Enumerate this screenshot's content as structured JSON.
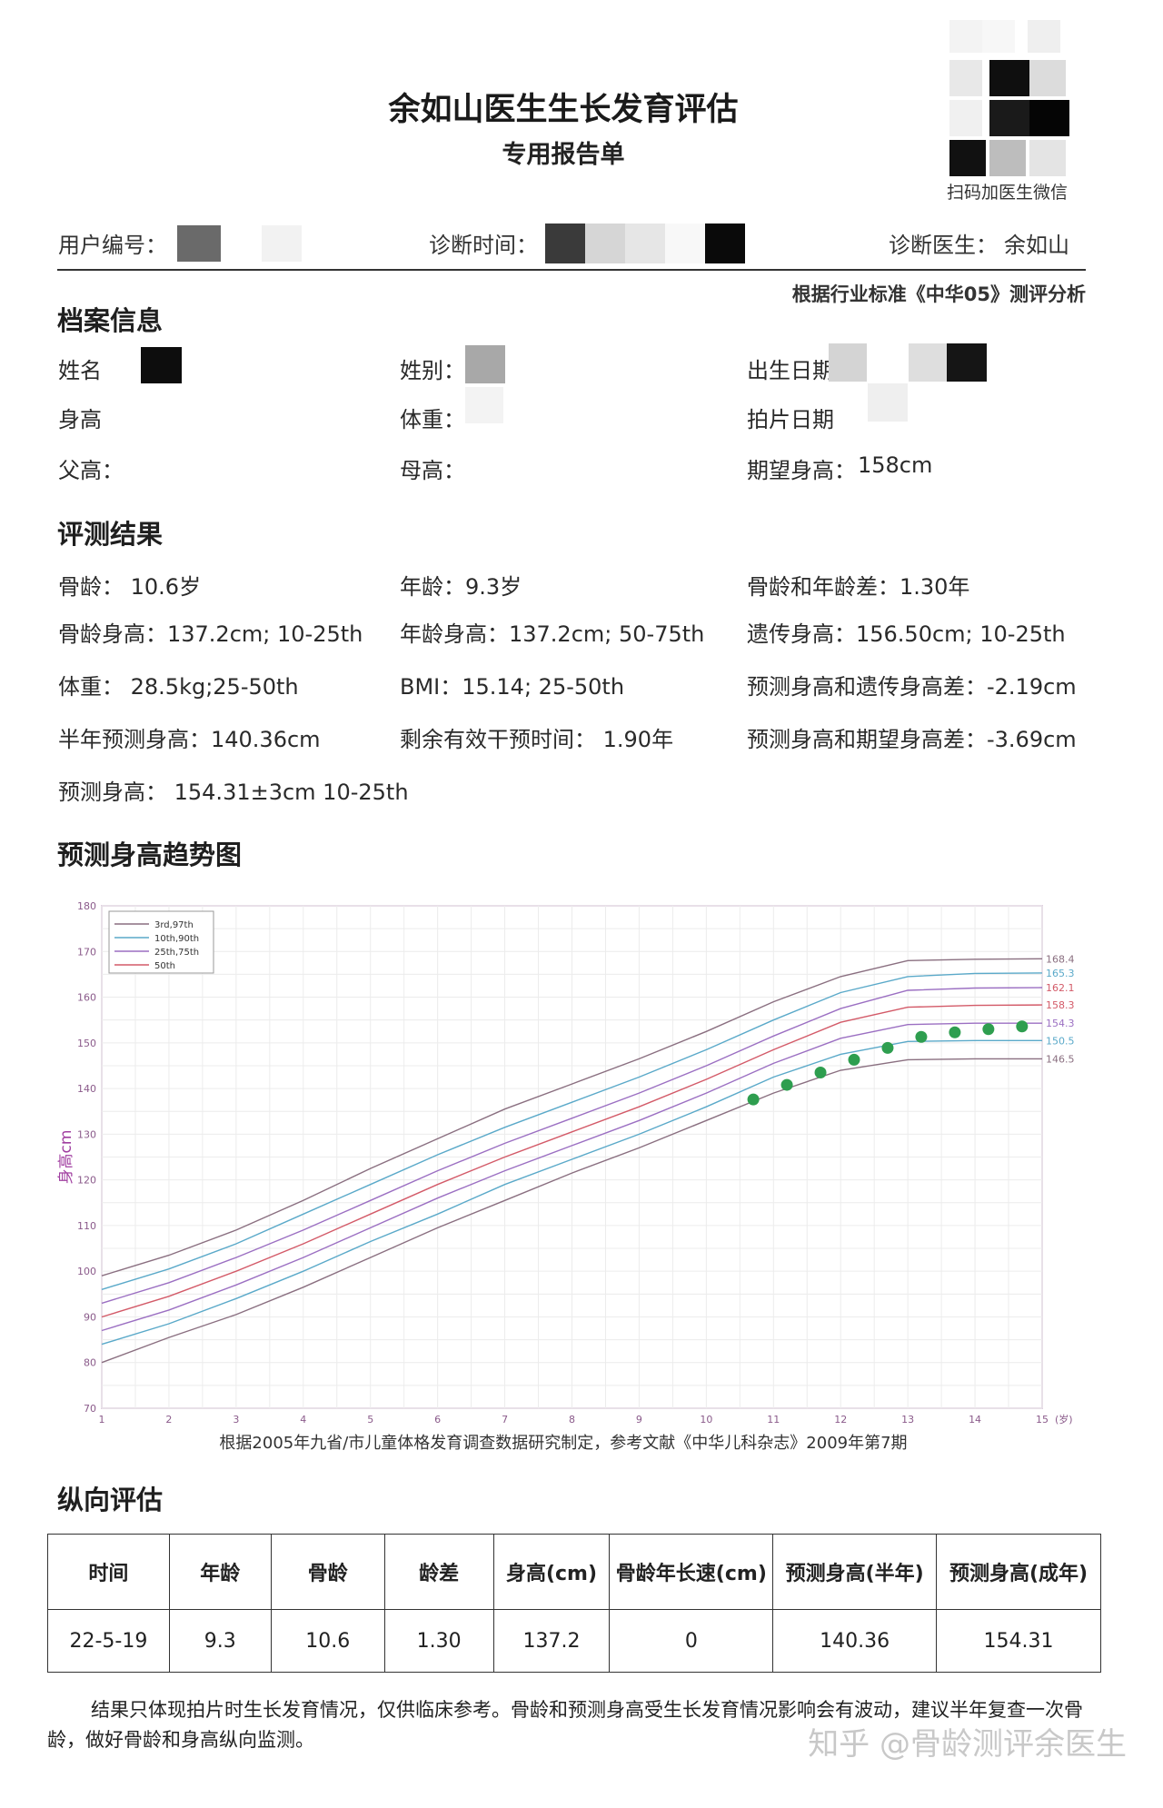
{
  "report": {
    "title": "余如山医生生长发育评估",
    "subtitle": "专用报告单",
    "qr_caption": "扫码加医生微信",
    "user_id_label": "用户编号：",
    "diag_time_label": "诊断时间：",
    "doctor_label": "诊断医生：",
    "doctor_name": "余如山",
    "standard": "根据行业标准《中华05》测评分析"
  },
  "profile": {
    "heading": "档案信息",
    "name_label": "姓名",
    "gender_label": "姓别：",
    "birth_label": "出生日期",
    "height_label": "身高",
    "weight_label": "体重：",
    "xray_label": "拍片日期",
    "father_label": "父高：",
    "mother_label": "母高：",
    "expected_label": "期望身高：",
    "expected_value": "158cm"
  },
  "results": {
    "heading": "评测结果",
    "rows": [
      [
        "骨龄：  10.6岁",
        "年龄：9.3岁",
        "骨龄和年龄差：1.30年"
      ],
      [
        "骨龄身高：137.2cm; 10-25th",
        "年龄身高：137.2cm; 50-75th",
        "遗传身高：156.50cm;    10-25th"
      ],
      [
        "体重：  28.5kg;25-50th",
        "BMI：15.14; 25-50th",
        "预测身高和遗传身高差：-2.19cm"
      ],
      [
        "半年预测身高：140.36cm",
        "剩余有效干预时间：  1.90年",
        "预测身高和期望身高差：-3.69cm"
      ],
      [
        "预测身高：  154.31±3cm     10-25th",
        "",
        ""
      ]
    ]
  },
  "trend": {
    "heading": "预测身高趋势图",
    "caption": "根据2005年九省/市儿童体格发育调查数据研究制定，参考文献《中华儿科杂志》2009年第7期"
  },
  "chart_data": {
    "type": "line",
    "ylabel": "身高cm",
    "x_unit": "(岁)",
    "xlim": [
      1,
      15
    ],
    "ylim": [
      70,
      180
    ],
    "x_ticks": [
      1,
      2,
      3,
      4,
      5,
      6,
      7,
      8,
      9,
      10,
      11,
      12,
      13,
      14,
      15
    ],
    "y_ticks": [
      70,
      80,
      90,
      100,
      110,
      120,
      130,
      140,
      150,
      160,
      170,
      180
    ],
    "grid": true,
    "legend_position": "top-left",
    "x": [
      1,
      2,
      3,
      4,
      5,
      6,
      7,
      8,
      9,
      10,
      11,
      12,
      13,
      14,
      15
    ],
    "series": [
      {
        "name": "3rd,97th",
        "color": "#8a6f80",
        "values": [
          99.0,
          103.5,
          109.0,
          115.5,
          122.5,
          129.0,
          135.5,
          141.0,
          146.5,
          152.5,
          159.0,
          164.5,
          168.0,
          168.3,
          168.4
        ]
      },
      {
        "name": "10th,90th",
        "color": "#5aa9c9",
        "values": [
          96.0,
          100.5,
          106.0,
          112.5,
          119.0,
          125.5,
          131.5,
          137.0,
          142.5,
          148.5,
          155.0,
          161.0,
          164.5,
          165.2,
          165.3
        ]
      },
      {
        "name": "25th,75th",
        "color": "#9b6fc2",
        "values": [
          93.0,
          97.5,
          103.0,
          109.0,
          115.5,
          122.0,
          128.0,
          133.5,
          139.0,
          145.0,
          151.5,
          157.5,
          161.5,
          162.0,
          162.1
        ]
      },
      {
        "name": "50th",
        "color": "#d35a68",
        "values": [
          90.0,
          94.5,
          100.0,
          106.0,
          112.5,
          119.0,
          125.0,
          130.5,
          136.0,
          142.0,
          148.5,
          154.5,
          157.8,
          158.2,
          158.3
        ]
      },
      {
        "name": "",
        "color": "#9b6fc2",
        "values": [
          87.0,
          91.5,
          97.0,
          103.0,
          109.5,
          116.0,
          122.0,
          127.5,
          133.0,
          139.0,
          145.5,
          151.0,
          154.0,
          154.3,
          154.3
        ]
      },
      {
        "name": "",
        "color": "#5aa9c9",
        "values": [
          84.0,
          88.5,
          94.0,
          100.0,
          106.5,
          112.5,
          119.0,
          124.5,
          130.0,
          136.0,
          142.5,
          147.5,
          150.3,
          150.5,
          150.5
        ]
      },
      {
        "name": "",
        "color": "#8a6f80",
        "values": [
          80.0,
          85.5,
          90.5,
          96.5,
          103.0,
          109.5,
          115.5,
          121.5,
          127.0,
          133.0,
          139.0,
          144.0,
          146.3,
          146.5,
          146.5
        ]
      }
    ],
    "right_labels": [
      {
        "text": "168.4",
        "color": "#8a6f80"
      },
      {
        "text": "165.3",
        "color": "#5aa9c9"
      },
      {
        "text": "162.1",
        "color": "#d35a68"
      },
      {
        "text": "158.3",
        "color": "#d35a68"
      },
      {
        "text": "154.3",
        "color": "#9b6fc2"
      },
      {
        "text": "150.5",
        "color": "#5aa9c9"
      },
      {
        "text": "146.5",
        "color": "#8a6f80"
      }
    ],
    "prediction_points": {
      "color": "#2e9e4f",
      "x": [
        10.7,
        11.2,
        11.7,
        12.2,
        12.7,
        13.2,
        13.7,
        14.2,
        14.7
      ],
      "y": [
        137.6,
        140.8,
        143.5,
        146.3,
        148.9,
        151.3,
        152.3,
        153.0,
        153.6
      ]
    }
  },
  "longitudinal": {
    "heading": "纵向评估",
    "headers": [
      "时间",
      "年龄",
      "骨龄",
      "龄差",
      "身高(cm)",
      "骨龄年长速(cm)",
      "预测身高(半年)",
      "预测身高(成年)"
    ],
    "rows": [
      [
        "22-5-19",
        "9.3",
        "10.6",
        "1.30",
        "137.2",
        "0",
        "140.36",
        "154.31"
      ]
    ]
  },
  "note": "结果只体现拍片时生长发育情况，仅供临床参考。骨龄和预测身高受生长发育情况影响会有波动，建议半年复查一次骨龄，做好骨龄和身高纵向监测。",
  "watermark": "知乎 @骨龄测评余医生"
}
